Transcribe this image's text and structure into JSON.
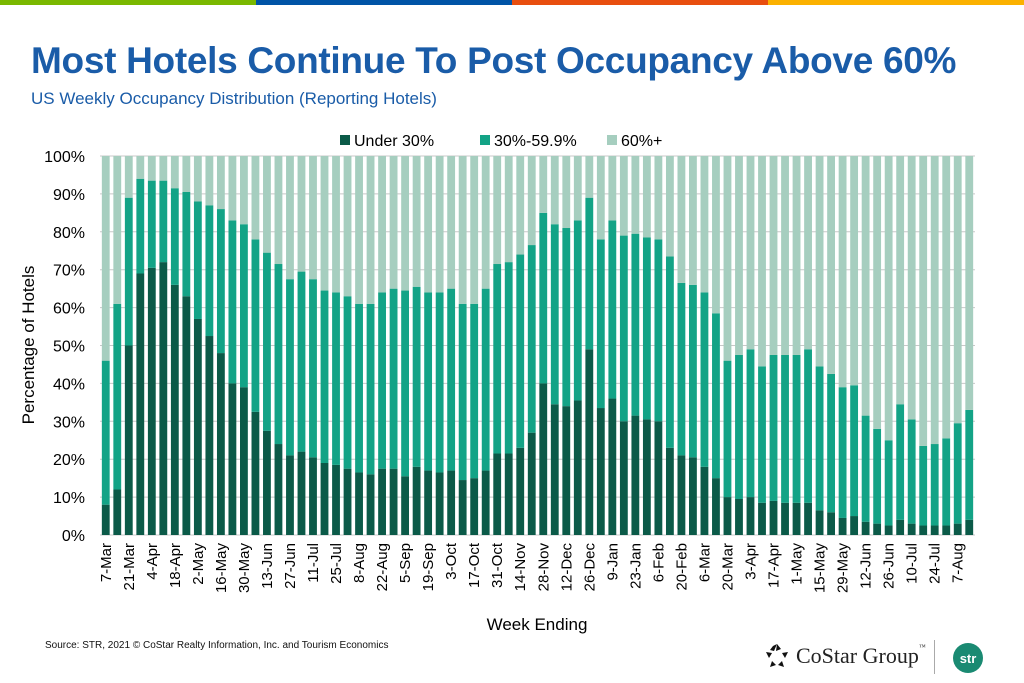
{
  "header": {
    "title": "Most Hotels Continue To Post Occupancy Above 60%",
    "subtitle": "US Weekly Occupancy Distribution (Reporting Hotels)"
  },
  "colors": {
    "stripe": [
      "#7ab800",
      "#0054a6",
      "#e84e0f",
      "#fbb100"
    ],
    "title": "#1a5ca8",
    "under30": "#0b5a48",
    "mid": "#13a386",
    "high": "#a6cebf",
    "str_logo": "#1a8a72"
  },
  "chart_data": {
    "type": "bar",
    "stacked": true,
    "xlabel": "Week Ending",
    "ylabel": "Percentage of Hotels",
    "ylim": [
      0,
      100
    ],
    "y_ticks": [
      "0%",
      "10%",
      "20%",
      "30%",
      "40%",
      "50%",
      "60%",
      "70%",
      "80%",
      "90%",
      "100%"
    ],
    "grid": true,
    "legend_position": "top-center",
    "x_tick_labels_every_other_bar": [
      "7-Mar",
      "21-Mar",
      "4-Apr",
      "18-Apr",
      "2-May",
      "16-May",
      "30-May",
      "13-Jun",
      "27-Jun",
      "11-Jul",
      "25-Jul",
      "8-Aug",
      "22-Aug",
      "5-Sep",
      "19-Sep",
      "3-Oct",
      "17-Oct",
      "31-Oct",
      "14-Nov",
      "28-Nov",
      "12-Dec",
      "26-Dec",
      "9-Jan",
      "23-Jan",
      "6-Feb",
      "20-Feb",
      "6-Mar",
      "20-Mar",
      "3-Apr",
      "17-Apr",
      "1-May",
      "15-May",
      "29-May",
      "12-Jun",
      "26-Jun",
      "10-Jul",
      "24-Jul",
      "7-Aug"
    ],
    "series": [
      {
        "name": "Under 30%",
        "values": [
          8,
          12,
          50,
          69,
          70.5,
          72,
          66,
          63,
          57,
          52.5,
          48,
          40,
          39,
          32.5,
          27.5,
          24,
          21,
          22,
          20.5,
          19,
          18.5,
          17.5,
          16.5,
          16,
          17.5,
          17.5,
          15.5,
          18,
          17,
          16.5,
          17,
          14.5,
          15,
          17,
          21.5,
          21.5,
          23,
          27,
          40,
          34.5,
          34,
          35.5,
          49,
          33.5,
          36,
          30,
          31.5,
          30.5,
          30,
          23,
          21,
          20.5,
          18,
          15,
          10,
          9.5,
          10,
          8.5,
          9,
          8.5,
          8.5,
          8.5,
          6.5,
          6,
          4.5,
          5,
          3.5,
          3,
          2.5,
          4,
          3,
          2.5,
          2.5,
          2.5,
          3,
          4
        ]
      },
      {
        "name": "30%-59.9%",
        "values": [
          38,
          49,
          39,
          25,
          23,
          21.5,
          25.5,
          27.5,
          31,
          34.5,
          38,
          43,
          43,
          45.5,
          47,
          47.5,
          46.5,
          47.5,
          47,
          45.5,
          45.5,
          45.5,
          44.5,
          45,
          46.5,
          47.5,
          49,
          47.5,
          47,
          47.5,
          48,
          46.5,
          46,
          48,
          50,
          50.5,
          51,
          49.5,
          45,
          47.5,
          47,
          47.5,
          40,
          44.5,
          47,
          49,
          48,
          48,
          48,
          50.5,
          45.5,
          45.5,
          46,
          43.5,
          36,
          38,
          39,
          36,
          38.5,
          39,
          39,
          40.5,
          38,
          36.5,
          34.5,
          34.5,
          28,
          25,
          22.5,
          30.5,
          27.5,
          21,
          21.5,
          23,
          26.5,
          29
        ]
      },
      {
        "name": "60%+",
        "values": [
          54,
          39,
          11,
          6,
          6.5,
          6.5,
          8.5,
          9.5,
          12,
          13,
          14,
          17,
          18,
          22,
          25.5,
          28.5,
          32.5,
          30.5,
          32.5,
          35.5,
          36,
          37,
          39,
          39,
          36,
          35,
          35.5,
          34.5,
          36,
          36,
          35,
          39,
          39,
          35,
          28.5,
          28,
          26,
          23.5,
          15,
          18,
          19,
          17,
          11,
          22,
          17,
          21,
          20.5,
          21.5,
          22,
          26.5,
          33.5,
          34,
          36,
          41.5,
          54,
          52.5,
          51,
          55.5,
          52.5,
          52.5,
          52.5,
          51,
          55.5,
          57.5,
          61,
          60.5,
          68.5,
          72,
          75,
          65.5,
          69.5,
          76.5,
          76,
          74.5,
          70.5,
          67
        ]
      }
    ]
  },
  "footer": {
    "source": "Source: STR, 2021 © CoStar Realty Information, Inc. and Tourism Economics",
    "costar_logo": "CoStar Group",
    "costar_tm": "™",
    "str_logo": "str"
  }
}
